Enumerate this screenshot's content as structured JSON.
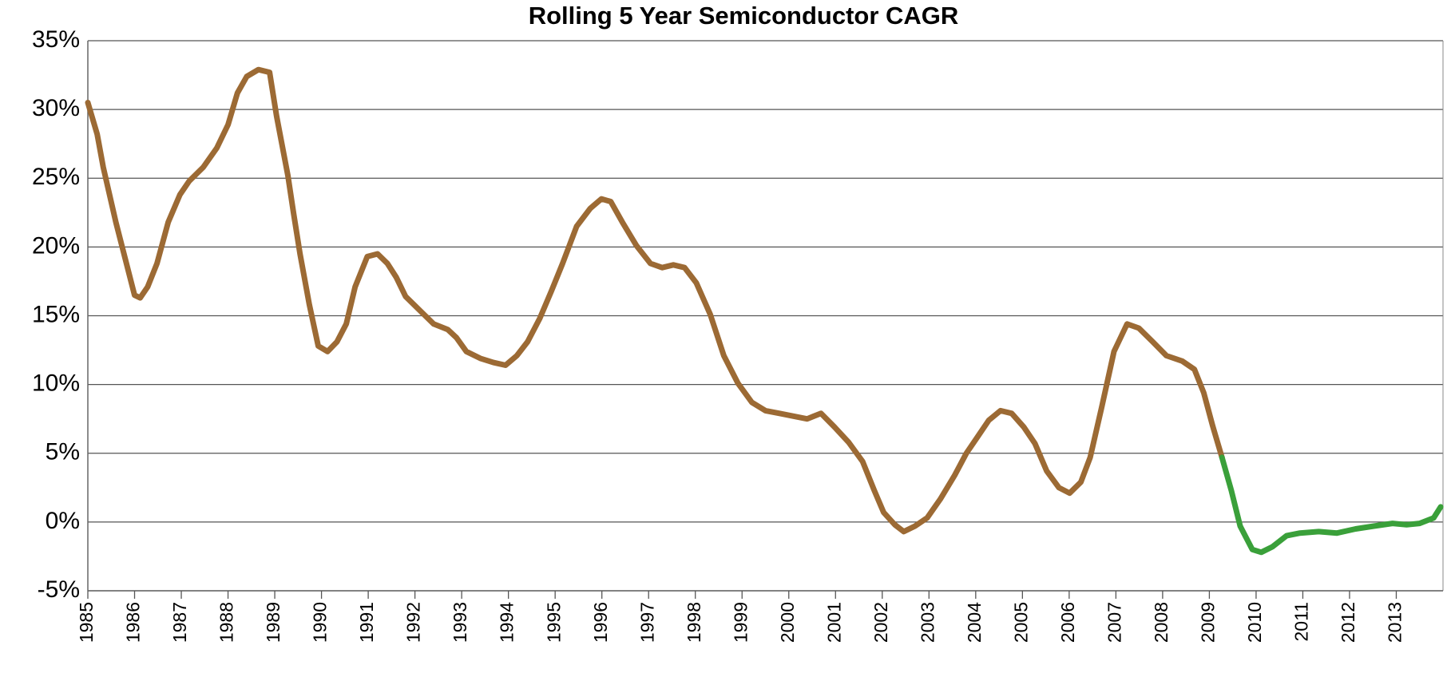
{
  "chart_data": {
    "type": "line",
    "title": "Rolling 5 Year Semiconductor CAGR",
    "xlim": [
      1985,
      2014
    ],
    "xticks": [
      1985,
      1986,
      1987,
      1988,
      1989,
      1990,
      1991,
      1992,
      1993,
      1994,
      1995,
      1996,
      1997,
      1998,
      1999,
      2000,
      2001,
      2002,
      2003,
      2004,
      2005,
      2006,
      2007,
      2008,
      2009,
      2010,
      2011,
      2012,
      2013
    ],
    "ylim": [
      -5,
      35
    ],
    "yticks": [
      {
        "value": -5,
        "label": "-5%"
      },
      {
        "value": 0,
        "label": "0%"
      },
      {
        "value": 5,
        "label": "5%"
      },
      {
        "value": 10,
        "label": "10%"
      },
      {
        "value": 15,
        "label": "15%"
      },
      {
        "value": 20,
        "label": "20%"
      },
      {
        "value": 25,
        "label": "25%"
      },
      {
        "value": 30,
        "label": "30%"
      },
      {
        "value": 35,
        "label": "35%"
      }
    ],
    "grid": true,
    "series": [
      {
        "color": "#9c6a34",
        "x": [
          1985.0,
          1985.2,
          1985.33,
          1985.6,
          1985.75,
          1986.0,
          1986.12,
          1986.28,
          1986.48,
          1986.72,
          1986.97,
          1987.17,
          1987.47,
          1987.76,
          1988.0,
          1988.2,
          1988.4,
          1988.65,
          1988.89,
          1989.04,
          1989.28,
          1989.4,
          1989.54,
          1989.74,
          1989.93,
          1990.13,
          1990.33,
          1990.53,
          1990.72,
          1990.98,
          1991.2,
          1991.41,
          1991.6,
          1991.8,
          1992.1,
          1992.4,
          1992.7,
          1992.89,
          1993.1,
          1993.4,
          1993.68,
          1993.94,
          1994.18,
          1994.41,
          1994.67,
          1994.92,
          1995.16,
          1995.46,
          1995.75,
          1995.99,
          1996.19,
          1996.44,
          1996.74,
          1997.04,
          1997.29,
          1997.53,
          1997.77,
          1998.02,
          1998.32,
          1998.61,
          1998.91,
          1999.21,
          1999.5,
          1999.8,
          2000.09,
          2000.39,
          2000.69,
          2000.98,
          2001.28,
          2001.58,
          2001.83,
          2002.03,
          2002.27,
          2002.46,
          2002.7,
          2002.96,
          2003.25,
          2003.55,
          2003.8,
          2004.04,
          2004.28,
          2004.53,
          2004.77,
          2005.03,
          2005.27,
          2005.52,
          2005.78,
          2006.01,
          2006.25,
          2006.45,
          2006.7,
          2006.96,
          2007.24,
          2007.49,
          2007.79,
          2008.08,
          2008.42,
          2008.68,
          2008.88,
          2009.07,
          2009.27
        ],
        "values": [
          30.5,
          28.2,
          25.8,
          21.8,
          19.8,
          16.5,
          16.3,
          17.1,
          18.8,
          21.8,
          23.8,
          24.8,
          25.8,
          27.2,
          28.9,
          31.2,
          32.4,
          32.9,
          32.7,
          29.5,
          25.2,
          22.5,
          19.5,
          15.8,
          12.8,
          12.4,
          13.1,
          14.4,
          17.1,
          19.3,
          19.5,
          18.8,
          17.8,
          16.4,
          15.4,
          14.4,
          14.0,
          13.4,
          12.4,
          11.9,
          11.6,
          11.4,
          12.1,
          13.1,
          14.8,
          16.8,
          18.8,
          21.5,
          22.8,
          23.5,
          23.3,
          21.8,
          20.1,
          18.8,
          18.5,
          18.7,
          18.5,
          17.4,
          15.1,
          12.1,
          10.1,
          8.7,
          8.1,
          7.9,
          7.7,
          7.5,
          7.9,
          6.9,
          5.8,
          4.4,
          2.3,
          0.7,
          -0.2,
          -0.7,
          -0.3,
          0.3,
          1.7,
          3.4,
          5.0,
          6.2,
          7.4,
          8.1,
          7.9,
          6.9,
          5.7,
          3.7,
          2.5,
          2.1,
          2.9,
          4.7,
          8.4,
          12.4,
          14.4,
          14.1,
          13.1,
          12.1,
          11.7,
          11.1,
          9.4,
          7.0,
          4.7
        ]
      },
      {
        "color": "#3aa03a",
        "x": [
          2009.27,
          2009.47,
          2009.66,
          2009.92,
          2010.11,
          2010.35,
          2010.65,
          2010.94,
          2011.34,
          2011.73,
          2012.13,
          2012.52,
          2012.92,
          2013.22,
          2013.5,
          2013.8,
          2013.95
        ],
        "values": [
          4.7,
          2.3,
          -0.3,
          -2.0,
          -2.2,
          -1.8,
          -1.0,
          -0.8,
          -0.7,
          -0.8,
          -0.5,
          -0.3,
          -0.1,
          -0.2,
          -0.1,
          0.3,
          1.1
        ]
      }
    ]
  }
}
